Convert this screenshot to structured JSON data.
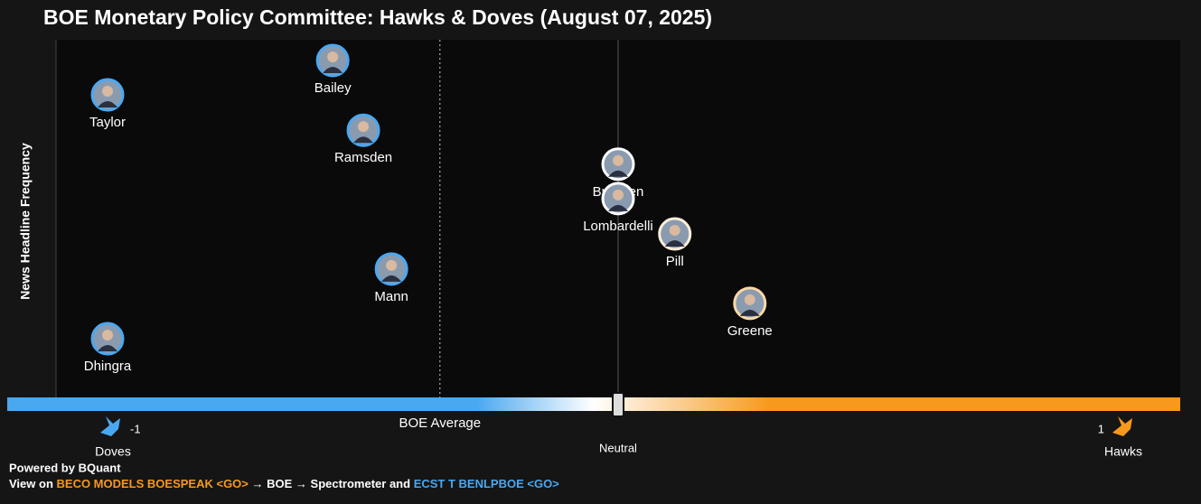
{
  "chart_data": {
    "type": "scatter",
    "title": "BOE Monetary Policy Committee: Hawks & Doves (August 07, 2025)",
    "y_label": "News Headline Frequency",
    "xlim": [
      -1,
      1
    ],
    "ylim": [
      0,
      10
    ],
    "xticks": [
      -1,
      1
    ],
    "neutral_label": "Neutral",
    "dove_label": "Doves",
    "hawk_label": "Hawks",
    "average": {
      "label": "BOE Average",
      "value": -0.349
    },
    "points": [
      {
        "name": "Bailey",
        "x": -0.559,
        "y": 9.42
      },
      {
        "name": "Taylor",
        "x": -1,
        "y": 8.46
      },
      {
        "name": "Ramsden",
        "x": -0.499,
        "y": 7.47
      },
      {
        "name": "Breeden",
        "x": 0,
        "y": 6.52
      },
      {
        "name": "Lombardelli",
        "x": 0,
        "y": 5.56
      },
      {
        "name": "Pill",
        "x": 0.111,
        "y": 4.57
      },
      {
        "name": "Mann",
        "x": -0.444,
        "y": 3.59
      },
      {
        "name": "Greene",
        "x": 0.258,
        "y": 2.63
      },
      {
        "name": "Dhingra",
        "x": -1,
        "y": 1.64
      }
    ],
    "dove_color": "#4aa8f0",
    "hawk_color": "#f7991c"
  },
  "footer": {
    "powered": "Powered by BQuant",
    "prefix": "View on",
    "link1": "BECO MODELS BOESPEAK <GO>",
    "middle": "→ BOE → Spectrometer and",
    "link2": "ECST T BENLPBOE <GO>"
  }
}
